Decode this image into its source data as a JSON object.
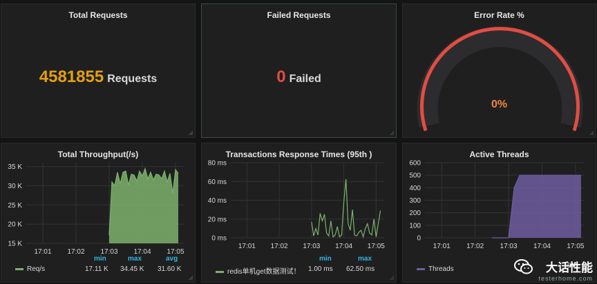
{
  "panels": {
    "total_requests": {
      "title": "Total Requests",
      "value": "4581855",
      "unit": "Requests",
      "color": "#e5a00d"
    },
    "failed_requests": {
      "title": "Failed Requests",
      "value": "0",
      "unit": "Failed",
      "color": "#e24d42"
    },
    "error_rate": {
      "title": "Error Rate %",
      "value": "0%",
      "value_color": "#f0883a",
      "arc_color": "#e24d42",
      "fraction": 0
    },
    "throughput": {
      "title": "Total Throughput(/s)",
      "legend": {
        "min_label": "min",
        "max_label": "max",
        "avg_label": "avg",
        "series": "Req/s",
        "min": "17.11 K",
        "max": "34.45 K",
        "avg": "31.60 K"
      }
    },
    "response_times": {
      "title": "Transactions Response Times (95th )",
      "legend": {
        "min_label": "min",
        "max_label": "max",
        "series": "redis单机get数据测试！",
        "min": "1.00 ms",
        "max": "62.50 ms"
      }
    },
    "threads": {
      "title": "Active Threads",
      "legend": {
        "series": "Threads",
        "max_short": "500"
      }
    }
  },
  "watermark": {
    "cn": "大话性能",
    "en": "testerhome.com"
  },
  "chart_data": [
    {
      "type": "area",
      "title": "Total Throughput(/s)",
      "x": [
        "17:03:00",
        "17:03:05",
        "17:03:10",
        "17:03:15",
        "17:03:20",
        "17:03:25",
        "17:03:30",
        "17:03:35",
        "17:03:40",
        "17:03:45",
        "17:03:50",
        "17:03:55",
        "17:04:00",
        "17:04:05",
        "17:04:10",
        "17:04:15",
        "17:04:20",
        "17:04:25",
        "17:04:30",
        "17:04:35",
        "17:04:40",
        "17:04:45",
        "17:04:50",
        "17:04:55",
        "17:05:00",
        "17:05:05"
      ],
      "xticks": [
        "17:01",
        "17:02",
        "17:03",
        "17:04",
        "17:05"
      ],
      "yticks": [
        "15 K",
        "20 K",
        "25 K",
        "30 K",
        "35 K"
      ],
      "ylim": [
        15000,
        36000
      ],
      "series": [
        {
          "name": "Req/s",
          "color": "#7eb26d",
          "values": [
            17100,
            31000,
            30000,
            33500,
            30500,
            33500,
            33800,
            30200,
            33000,
            32800,
            31200,
            33800,
            32500,
            34450,
            31800,
            33500,
            31500,
            33000,
            32800,
            31800,
            33800,
            31000,
            33200,
            28000,
            34200,
            33200
          ]
        }
      ]
    },
    {
      "type": "line",
      "title": "Transactions Response Times (95th )",
      "x": [
        "17:03:00",
        "17:03:04",
        "17:03:08",
        "17:03:12",
        "17:03:16",
        "17:03:20",
        "17:03:24",
        "17:03:28",
        "17:03:32",
        "17:03:36",
        "17:03:40",
        "17:03:44",
        "17:03:48",
        "17:03:52",
        "17:03:56",
        "17:04:00",
        "17:04:04",
        "17:04:08",
        "17:04:12",
        "17:04:16",
        "17:04:20",
        "17:04:24",
        "17:04:28",
        "17:04:32",
        "17:04:36",
        "17:04:40",
        "17:04:44",
        "17:04:48",
        "17:04:52",
        "17:04:56",
        "17:05:00",
        "17:05:04",
        "17:05:08"
      ],
      "xticks": [
        "17:01",
        "17:02",
        "17:03",
        "17:04",
        "17:05"
      ],
      "yticks": [
        "0 ms",
        "20 ms",
        "40 ms",
        "60 ms",
        "80 ms"
      ],
      "ylim": [
        0,
        80
      ],
      "series": [
        {
          "name": "redis单机get数据测试！",
          "color": "#7eb26d",
          "values": [
            17,
            2,
            10,
            3,
            26,
            18,
            25,
            5,
            2,
            18,
            1,
            3,
            12,
            1,
            3,
            38,
            62.5,
            15,
            8,
            30,
            3,
            2,
            6,
            8,
            1,
            10,
            15,
            5,
            3,
            20,
            1,
            15,
            29
          ]
        }
      ]
    },
    {
      "type": "area",
      "title": "Active Threads",
      "x": [
        "17:02:30",
        "17:03:00",
        "17:03:10",
        "17:03:20",
        "17:05:10"
      ],
      "xticks": [
        "17:01",
        "17:02",
        "17:03",
        "17:04",
        "17:05"
      ],
      "yticks": [
        "0",
        "100",
        "200",
        "300",
        "400",
        "500",
        "600"
      ],
      "ylim": [
        0,
        600
      ],
      "series": [
        {
          "name": "Threads",
          "color": "#705da0",
          "values": [
            0,
            0,
            400,
            500,
            500
          ]
        }
      ]
    }
  ]
}
